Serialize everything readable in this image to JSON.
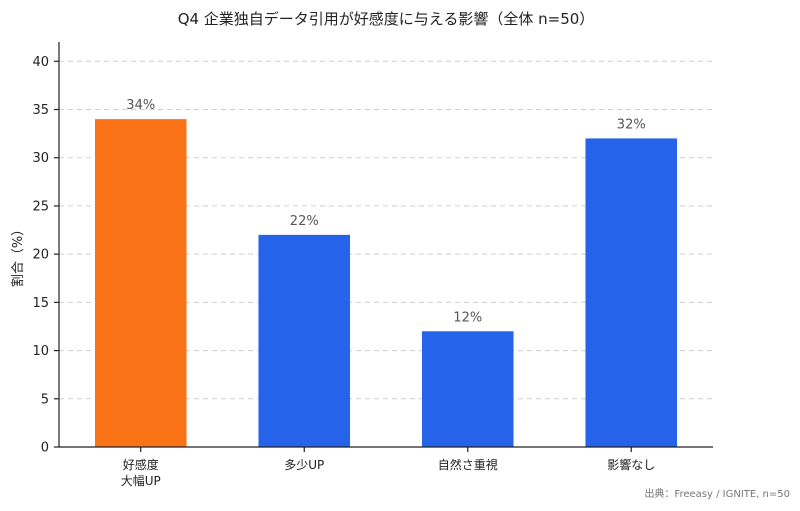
{
  "chart_data": {
    "type": "bar",
    "title": "Q4 企業独自データ引用が好感度に与える影響（全体 n=50）",
    "ylabel": "割合（%）",
    "xlabel": "",
    "categories": [
      [
        "好感度",
        "大幅UP"
      ],
      [
        "多少UP"
      ],
      [
        "自然さ重視"
      ],
      [
        "影響なし"
      ]
    ],
    "values": [
      34,
      22,
      12,
      32
    ],
    "value_labels": [
      "34%",
      "22%",
      "12%",
      "32%"
    ],
    "bar_colors": [
      "#f97316",
      "#2563eb",
      "#2563eb",
      "#2563eb"
    ],
    "ylim": [
      0,
      42
    ],
    "yticks": [
      0,
      5,
      10,
      15,
      20,
      25,
      30,
      35,
      40
    ],
    "grid": true,
    "source": "出典：Freeasy / IGNITE, n=50"
  }
}
